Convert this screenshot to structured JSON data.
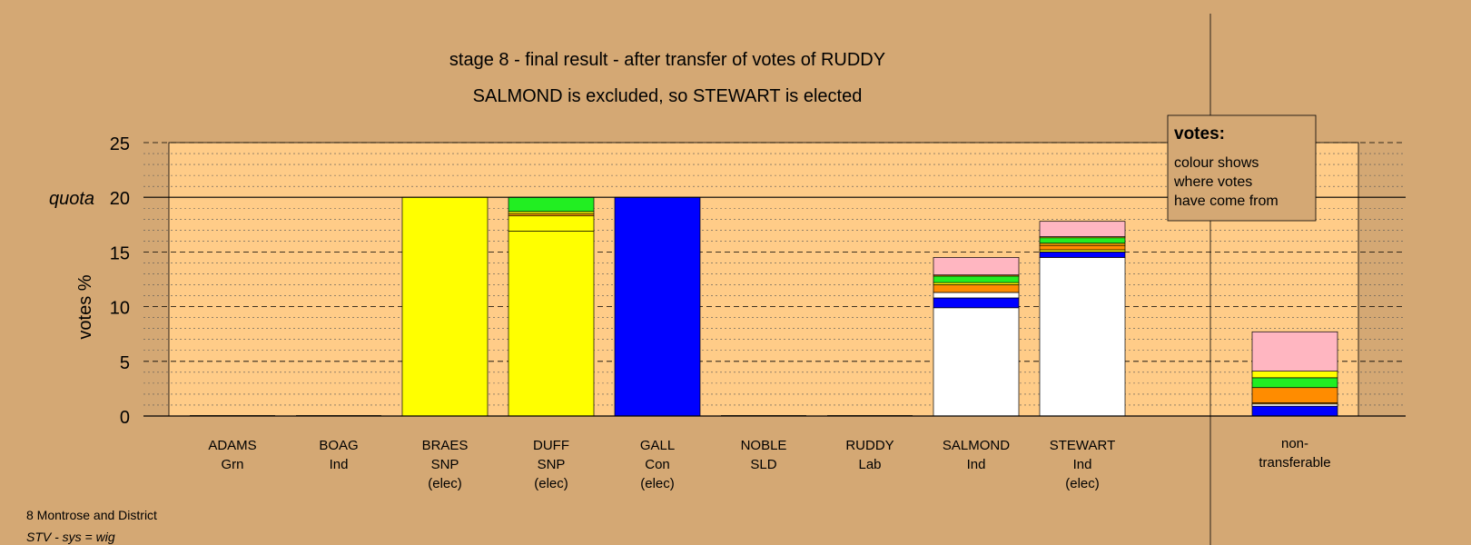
{
  "chart_data": {
    "type": "bar",
    "stacked": true,
    "title": "stage 8 - final result - after transfer of votes of RUDDY",
    "subtitle": "SALMOND is excluded, so STEWART is elected",
    "ylabel": "votes %",
    "quota_label": "quota",
    "quota": 20,
    "ylim": [
      0,
      25
    ],
    "yticks": [
      0,
      5,
      10,
      15,
      20,
      25
    ],
    "grid": "dashed major, dotted minor",
    "colors": {
      "own": "#ffffff",
      "Con": "#0000ff",
      "SNP": "#ffff00",
      "Lab": "#ff8c00",
      "SLD": "#ffa500",
      "Grn": "#00ff00",
      "Ind": "#ffb6c1",
      "Grn_bright": "#22ee22",
      "chart_bg": "#ffcc88",
      "page_bg": "#d4a874"
    },
    "categories": [
      {
        "name": "ADAMS",
        "party": "Grn",
        "status": "",
        "segments": []
      },
      {
        "name": "BOAG",
        "party": "Ind",
        "status": "",
        "segments": []
      },
      {
        "name": "BRAES",
        "party": "SNP",
        "status": "(elec)",
        "segments": [
          {
            "color": "#ffff00",
            "value": 20
          }
        ]
      },
      {
        "name": "DUFF",
        "party": "SNP",
        "status": "(elec)",
        "segments": [
          {
            "color": "#ffff00",
            "value": 16.9
          },
          {
            "color": "#ffff00",
            "value": 1.4
          },
          {
            "color": "#ffa500",
            "value": 0.2
          },
          {
            "color": "#ffff00",
            "value": 0.2
          },
          {
            "color": "#22ee22",
            "value": 1.3
          }
        ]
      },
      {
        "name": "GALL",
        "party": "Con",
        "status": "(elec)",
        "segments": [
          {
            "color": "#0000ff",
            "value": 20
          }
        ]
      },
      {
        "name": "NOBLE",
        "party": "SLD",
        "status": "",
        "segments": []
      },
      {
        "name": "RUDDY",
        "party": "Lab",
        "status": "",
        "segments": []
      },
      {
        "name": "SALMOND",
        "party": "Ind",
        "status": "",
        "segments": [
          {
            "color": "#ffffff",
            "value": 9.9
          },
          {
            "color": "#0000ff",
            "value": 0.9
          },
          {
            "color": "#ffffff",
            "value": 0.5
          },
          {
            "color": "#ff8c00",
            "value": 0.7
          },
          {
            "color": "#ffff00",
            "value": 0.2
          },
          {
            "color": "#22ee22",
            "value": 0.6
          },
          {
            "color": "#ffa500",
            "value": 0.1
          },
          {
            "color": "#ffb6c1",
            "value": 1.6
          }
        ]
      },
      {
        "name": "STEWART",
        "party": "Ind",
        "status": "(elec)",
        "segments": [
          {
            "color": "#ffffff",
            "value": 14.5
          },
          {
            "color": "#0000ff",
            "value": 0.5
          },
          {
            "color": "#ffff00",
            "value": 0.2
          },
          {
            "color": "#ff8c00",
            "value": 0.4
          },
          {
            "color": "#ffa500",
            "value": 0.2
          },
          {
            "color": "#22ee22",
            "value": 0.5
          },
          {
            "color": "#ffff00",
            "value": 0.1
          },
          {
            "color": "#ffb6c1",
            "value": 1.4
          }
        ]
      }
    ],
    "nontransferable": {
      "label_line1": "non-",
      "label_line2": "transferable",
      "segments": [
        {
          "color": "#0000ff",
          "value": 0.9
        },
        {
          "color": "#ffffff",
          "value": 0.2
        },
        {
          "color": "#ffa500",
          "value": 0.1
        },
        {
          "color": "#ff8c00",
          "value": 1.4
        },
        {
          "color": "#22ee22",
          "value": 0.9
        },
        {
          "color": "#ffff00",
          "value": 0.6
        },
        {
          "color": "#ffb6c1",
          "value": 3.6
        }
      ]
    },
    "legend": {
      "title": "votes:",
      "lines": [
        "colour shows",
        "where votes",
        "have come from"
      ],
      "placement": "top-right"
    }
  },
  "footer": {
    "line1": "8 Montrose and District",
    "line2": "STV - sys = wig"
  }
}
